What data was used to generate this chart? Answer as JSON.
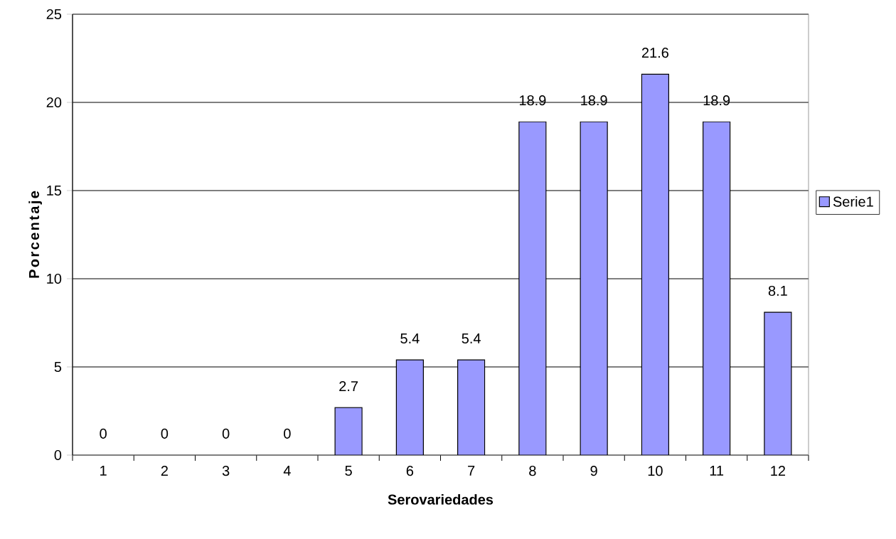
{
  "chart_data": {
    "type": "bar",
    "xlabel": "Serovariedades",
    "ylabel": "Porcentaje",
    "categories": [
      "1",
      "2",
      "3",
      "4",
      "5",
      "6",
      "7",
      "8",
      "9",
      "10",
      "11",
      "12"
    ],
    "series": [
      {
        "name": "Serie1",
        "color": "#9999ff",
        "values": [
          0,
          0,
          0,
          0,
          2.7,
          5.4,
          5.4,
          18.9,
          18.9,
          21.6,
          18.9,
          8.1
        ]
      }
    ],
    "ylim": [
      0,
      25
    ],
    "yticks": [
      0,
      5,
      10,
      15,
      20,
      25
    ],
    "grid": "y",
    "legend": "right",
    "data_labels": true
  }
}
